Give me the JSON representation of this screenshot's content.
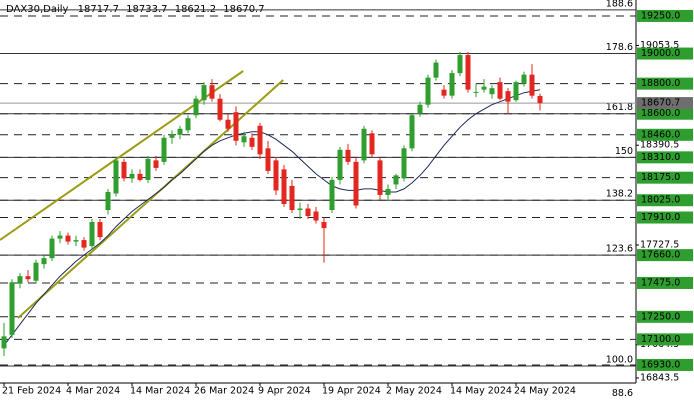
{
  "chart_data": {
    "type": "candlestick",
    "title": "DAX30,Daily",
    "categories": [
      "21 Feb 2024",
      null,
      null,
      null,
      null,
      null,
      null,
      null,
      "4 Mar 2024",
      null,
      null,
      null,
      null,
      null,
      null,
      null,
      "14 Mar 2024",
      null,
      null,
      null,
      null,
      null,
      null,
      null,
      "26 Mar 2024",
      null,
      null,
      null,
      null,
      null,
      null,
      null,
      "9 Apr 2024",
      null,
      null,
      null,
      null,
      null,
      null,
      null,
      "19 Apr 2024",
      null,
      null,
      null,
      null,
      null,
      null,
      null,
      "2 May 2024",
      null,
      null,
      null,
      null,
      null,
      null,
      null,
      "14 May 2024",
      null,
      null,
      null,
      null,
      null,
      null,
      null,
      "24 May 2024",
      null,
      null,
      null
    ],
    "open": [
      17040,
      17130,
      17470,
      17520,
      17490,
      17600,
      17640,
      17770,
      17790,
      17750,
      17760,
      17720,
      17880,
      17960,
      18070,
      18280,
      18170,
      18200,
      18160,
      18290,
      18280,
      18440,
      18460,
      18490,
      18590,
      18690,
      18790,
      18700,
      18560,
      18610,
      18410,
      18440,
      18520,
      18370,
      18290,
      18230,
      18120,
      17960,
      17970,
      17950,
      17880,
      17960,
      18160,
      18360,
      18280,
      18290,
      18470,
      18290,
      18060,
      18130,
      18170,
      18370,
      18600,
      18660,
      18840,
      18760,
      18720,
      18870,
      18990,
      18740,
      18760,
      18730,
      18810,
      18750,
      18690,
      18800,
      18860,
      18717.7
    ],
    "high": [
      17210,
      17500,
      17540,
      17560,
      17630,
      17660,
      17790,
      17820,
      17810,
      17790,
      17780,
      17900,
      17900,
      18100,
      18310,
      18300,
      18230,
      18230,
      18320,
      18320,
      18460,
      18490,
      18520,
      18590,
      18720,
      18810,
      18830,
      18730,
      18600,
      18650,
      18480,
      18470,
      18540,
      18420,
      18310,
      18260,
      18160,
      18010,
      18000,
      17980,
      17910,
      18180,
      18380,
      18400,
      18310,
      18520,
      18490,
      18310,
      18130,
      18200,
      18390,
      18600,
      18680,
      18860,
      18960,
      18790,
      18890,
      19010,
      19010,
      18800,
      18830,
      18790,
      18840,
      18770,
      18820,
      18880,
      18930,
      18733.7
    ],
    "low": [
      16990,
      17110,
      17440,
      17480,
      17470,
      17570,
      17620,
      17740,
      17730,
      17720,
      17690,
      17700,
      17760,
      17930,
      18050,
      18150,
      18140,
      18150,
      18140,
      18220,
      18260,
      18400,
      18430,
      18470,
      18570,
      18660,
      18680,
      18550,
      18480,
      18390,
      18380,
      18360,
      18300,
      18200,
      18060,
      17980,
      17940,
      17900,
      17900,
      17870,
      17610,
      17940,
      18130,
      18260,
      17970,
      18270,
      18310,
      18030,
      18020,
      18100,
      18150,
      18350,
      18580,
      18640,
      18820,
      18700,
      18700,
      18850,
      18740,
      18710,
      18740,
      18700,
      18690,
      18600,
      18680,
      18780,
      18700,
      18621.2
    ],
    "close": [
      17120,
      17480,
      17520,
      17500,
      17610,
      17640,
      17770,
      17790,
      17750,
      17760,
      17710,
      17880,
      17780,
      18080,
      18290,
      18170,
      18200,
      18160,
      18300,
      18240,
      18440,
      18460,
      18500,
      18570,
      18700,
      18790,
      18700,
      18560,
      18500,
      18420,
      18450,
      18380,
      18330,
      18220,
      18090,
      18000,
      17960,
      17970,
      17920,
      17890,
      17840,
      18160,
      18360,
      18280,
      17990,
      18500,
      18330,
      18060,
      18100,
      18190,
      18370,
      18590,
      18660,
      18840,
      18940,
      18720,
      18870,
      18990,
      18760,
      18745,
      18780,
      18770,
      18700,
      18680,
      18810,
      18860,
      18720,
      18670.7
    ],
    "ma": [
      17060,
      17130,
      17200,
      17270,
      17340,
      17400,
      17460,
      17520,
      17570,
      17620,
      17660,
      17700,
      17740,
      17790,
      17850,
      17900,
      17950,
      17990,
      18030,
      18070,
      18110,
      18160,
      18200,
      18250,
      18300,
      18350,
      18390,
      18420,
      18440,
      18460,
      18470,
      18480,
      18480,
      18460,
      18430,
      18390,
      18350,
      18300,
      18250,
      18200,
      18160,
      18120,
      18100,
      18090,
      18090,
      18100,
      18100,
      18090,
      18080,
      18080,
      18100,
      18140,
      18190,
      18250,
      18320,
      18390,
      18450,
      18510,
      18560,
      18600,
      18630,
      18660,
      18680,
      18700,
      18720,
      18740,
      18750,
      18760
    ],
    "trendlines": [
      {
        "x1": -0.5,
        "y1": 17761,
        "x2": 29.9,
        "y2": 18884
      },
      {
        "x1": 1.75,
        "y1": 17242,
        "x2": 34.9,
        "y2": 18824
      }
    ],
    "levels": [
      {
        "value": 19250,
        "label": "19250.0"
      },
      {
        "value": 19000,
        "label": "19000.0"
      },
      {
        "value": 18800,
        "label": "18800.0"
      },
      {
        "value": 18600,
        "label": "18600.0"
      },
      {
        "value": 18460,
        "label": "18460.0"
      },
      {
        "value": 18310,
        "label": "18310.0"
      },
      {
        "value": 18175,
        "label": "18175.0"
      },
      {
        "value": 18025,
        "label": "18025.0"
      },
      {
        "value": 17910,
        "label": "17910.0"
      },
      {
        "value": 17660,
        "label": "17660.0"
      },
      {
        "value": 17475,
        "label": "17475.0"
      },
      {
        "value": 17250,
        "label": "17250.0"
      },
      {
        "value": 17100,
        "label": "17100.0"
      },
      {
        "value": 16930,
        "label": "16930.0"
      }
    ],
    "fib_levels": [
      {
        "value": 19290,
        "label": "188.6"
      },
      {
        "value": 19000,
        "label": "178.6"
      },
      {
        "value": 18600,
        "label": "161.8"
      },
      {
        "value": 18310,
        "label": "150"
      },
      {
        "value": 18025,
        "label": "138.2"
      },
      {
        "value": 17660,
        "label": "123.6"
      },
      {
        "value": 16923,
        "label": "100.0"
      },
      {
        "value": 16700,
        "label": "88.6"
      }
    ],
    "ylim": [
      16810,
      19356
    ],
    "yticks": [
      19053.5,
      18390.5,
      17727.5,
      17064.5,
      16843.5
    ],
    "up_color": "#2e9e2e",
    "down_color": "#e3261f",
    "ma_color": "#1c2a5a",
    "trend_color": "#9c9c14",
    "level_color": "#2e9e2e",
    "price_box_color": "#6e6e6e"
  }
}
